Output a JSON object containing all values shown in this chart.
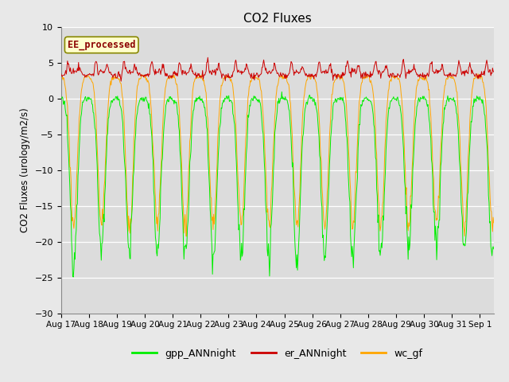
{
  "title": "CO2 Fluxes",
  "ylabel": "CO2 Fluxes (urology/m2/s)",
  "ylim": [
    -30,
    10
  ],
  "yticks": [
    -30,
    -25,
    -20,
    -15,
    -10,
    -5,
    0,
    5,
    10
  ],
  "fig_bg_color": "#e8e8e8",
  "plot_bg_color": "#dcdcdc",
  "legend_label": "EE_processed",
  "legend_box_color": "#ffffcc",
  "legend_border_color": "#888800",
  "gpp_color": "#00ee00",
  "er_color": "#cc0000",
  "wc_color": "#ffa500",
  "gpp_label": "gpp_ANNnight",
  "er_label": "er_ANNnight",
  "wc_label": "wc_gf",
  "n_days": 15.5,
  "points_per_day": 48,
  "day_labels": [
    "Aug 17",
    "Aug 18",
    "Aug 19",
    "Aug 20",
    "Aug 21",
    "Aug 22",
    "Aug 23",
    "Aug 24",
    "Aug 25",
    "Aug 26",
    "Aug 27",
    "Aug 28",
    "Aug 29",
    "Aug 30",
    "Aug 31",
    "Sep 1"
  ]
}
